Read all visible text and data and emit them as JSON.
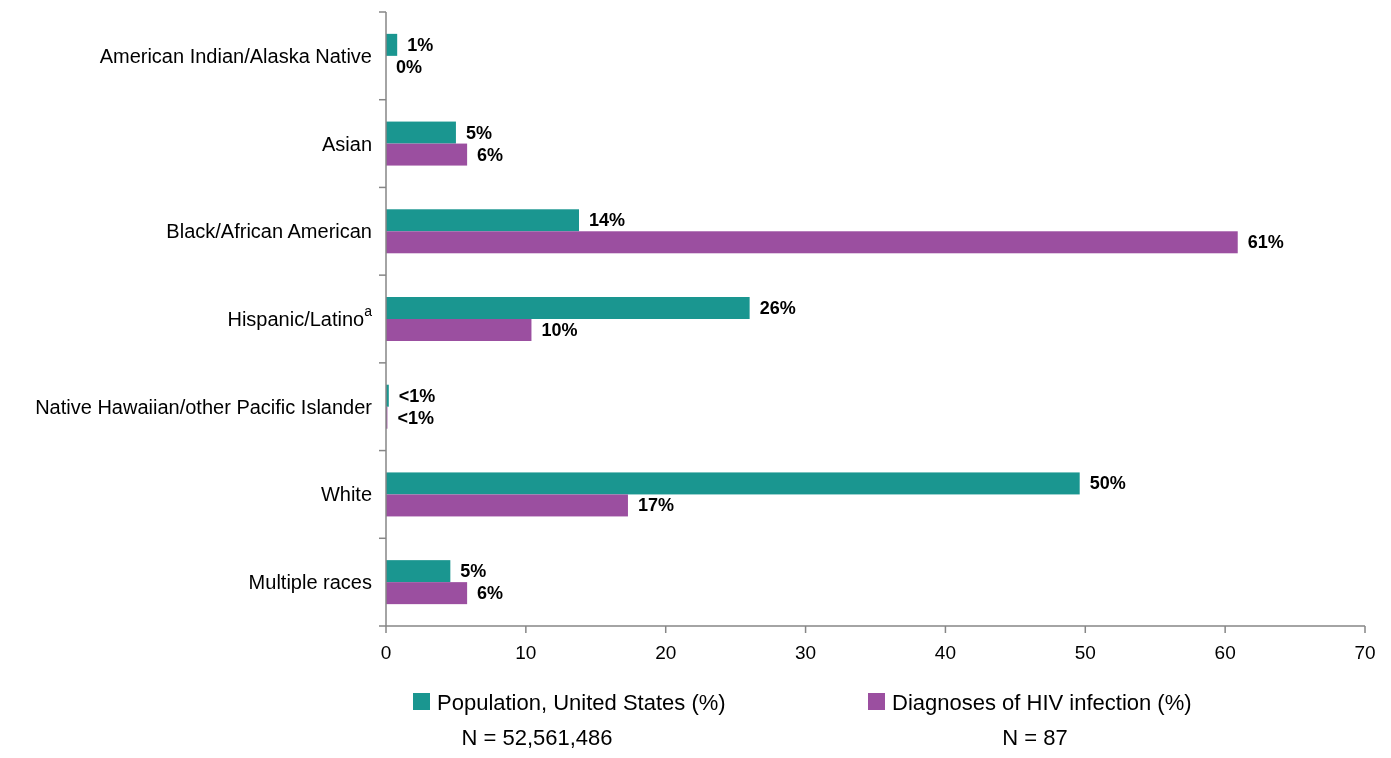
{
  "chart_data": {
    "type": "bar",
    "orientation": "horizontal",
    "categories": [
      "American Indian/Alaska Native",
      "Asian",
      "Black/African American",
      "Hispanic/Latino$^{a}$",
      "Native Hawaiian/other Pacific Islander",
      "White",
      "Multiple races"
    ],
    "series": [
      {
        "name": "Population, United States (%)",
        "color": "#1a9690",
        "values": [
          0.8,
          5.0,
          13.8,
          26.0,
          0.2,
          49.6,
          4.6
        ],
        "value_labels": [
          "1%",
          "5%",
          "14%",
          "26%",
          "<1%",
          "50%",
          "5%"
        ]
      },
      {
        "name": "Diagnoses of HIV infection (%)",
        "color": "#9b4fa0",
        "values": [
          0,
          5.8,
          60.9,
          10.4,
          0.1,
          17.3,
          5.8
        ],
        "value_labels": [
          "0%",
          "6%",
          "61%",
          "10%",
          "<1%",
          "17%",
          "6%"
        ]
      }
    ],
    "xlim": [
      0,
      70
    ],
    "xticks": [
      0,
      10,
      20,
      30,
      40,
      50,
      60,
      70
    ],
    "grid": false,
    "legend": "bottom",
    "annotations": [
      "N = 52,561,486",
      "N = 87"
    ]
  }
}
